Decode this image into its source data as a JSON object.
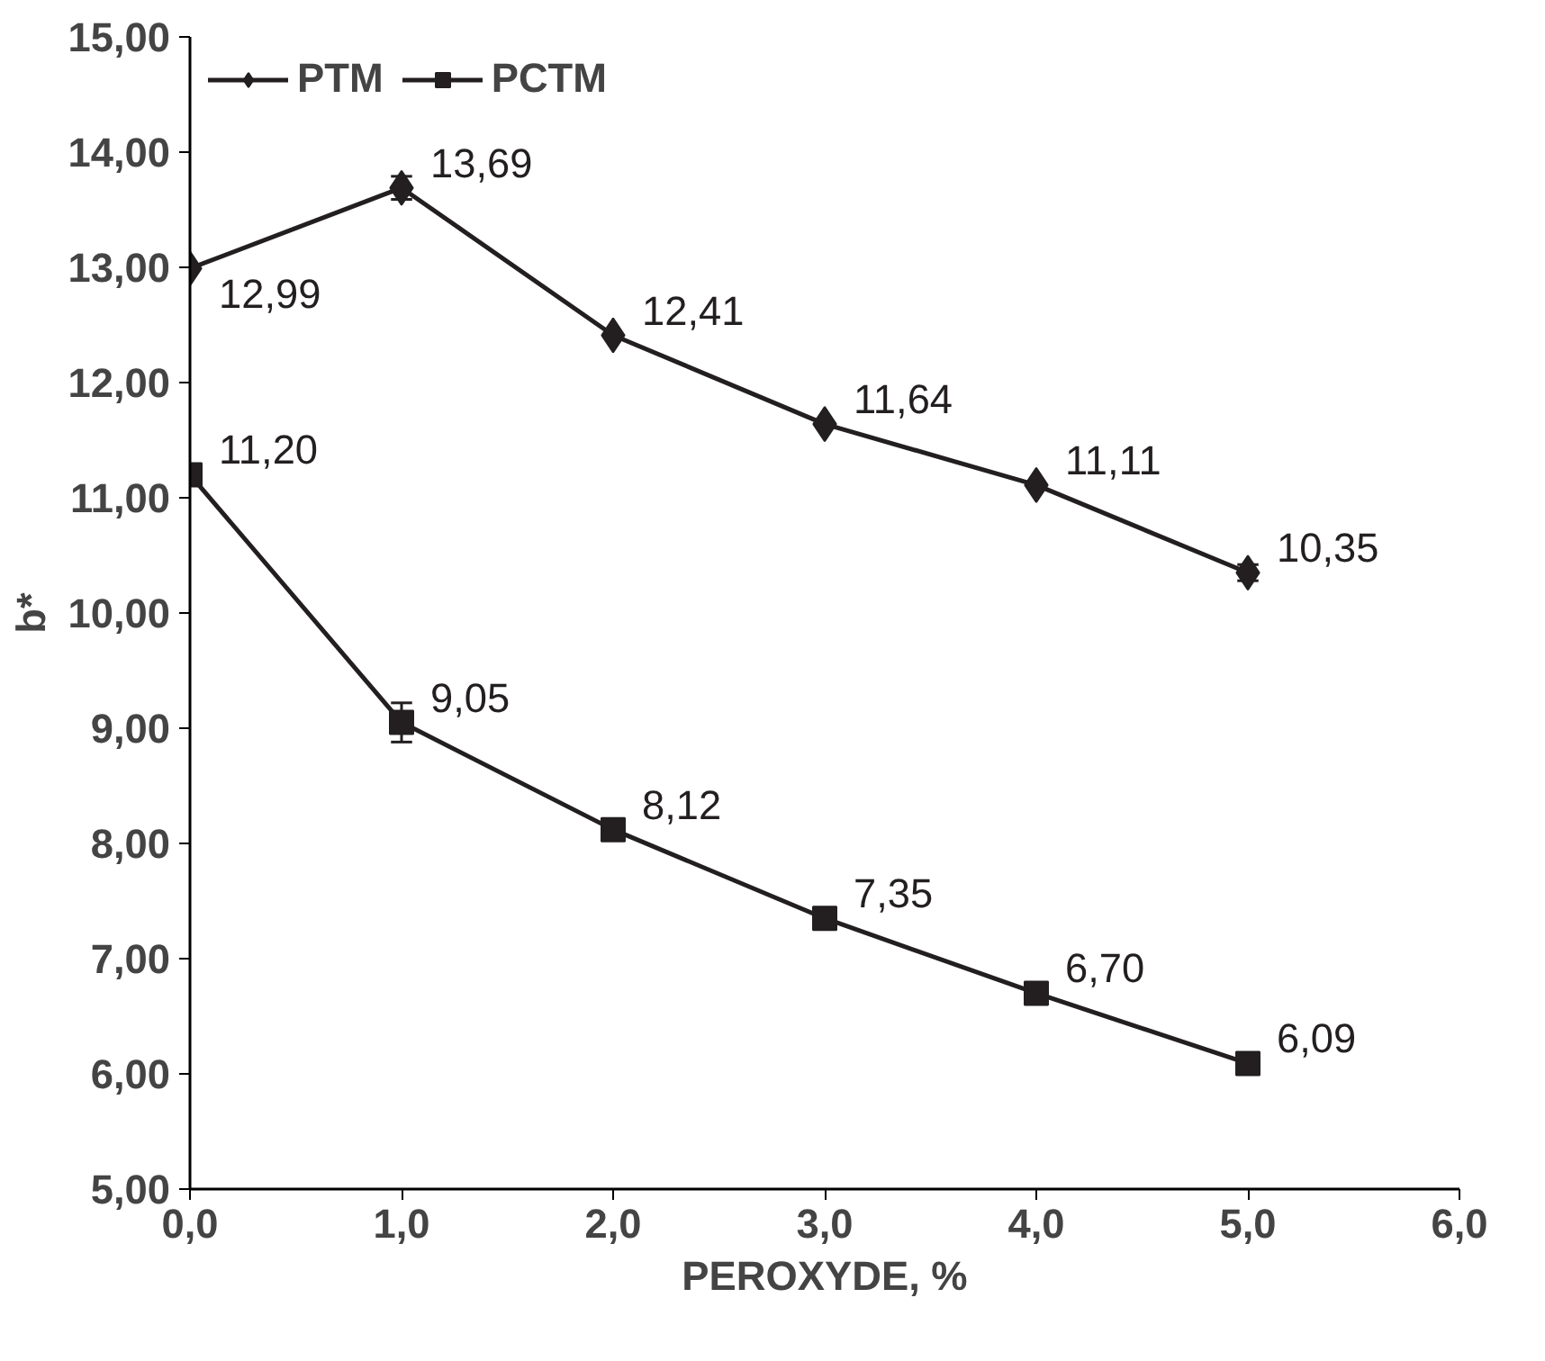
{
  "chart_data": {
    "type": "line",
    "xlabel": "PEROXYDE, %",
    "ylabel": "b*",
    "x": [
      0,
      1,
      2,
      3,
      4,
      5
    ],
    "series": [
      {
        "name": "PTM",
        "color": "#231f20",
        "marker": "diamond",
        "values": [
          12.99,
          13.69,
          12.41,
          11.64,
          11.11,
          10.35
        ],
        "errors": [
          null,
          0.1,
          null,
          null,
          null,
          0.07
        ],
        "value_labels": [
          "12,99",
          "13,69",
          "12,41",
          "11,64",
          "11,11",
          "10,35"
        ]
      },
      {
        "name": "PCTM",
        "color": "#231f20",
        "marker": "square",
        "values": [
          11.2,
          9.05,
          8.12,
          7.35,
          6.7,
          6.09
        ],
        "errors": [
          null,
          0.17,
          null,
          null,
          null,
          null
        ],
        "value_labels": [
          "11,20",
          "9,05",
          "8,12",
          "7,35",
          "6,70",
          "6,09"
        ]
      }
    ],
    "xlim": [
      0,
      6
    ],
    "ylim": [
      5,
      15
    ],
    "xticks": [
      {
        "value": 0,
        "label": "0,0"
      },
      {
        "value": 1,
        "label": "1,0"
      },
      {
        "value": 2,
        "label": "2,0"
      },
      {
        "value": 3,
        "label": "3,0"
      },
      {
        "value": 4,
        "label": "4,0"
      },
      {
        "value": 5,
        "label": "5,0"
      },
      {
        "value": 6,
        "label": "6,0"
      }
    ],
    "yticks": [
      {
        "value": 5,
        "label": "5,00"
      },
      {
        "value": 6,
        "label": "6,00"
      },
      {
        "value": 7,
        "label": "7,00"
      },
      {
        "value": 8,
        "label": "8,00"
      },
      {
        "value": 9,
        "label": "9,00"
      },
      {
        "value": 10,
        "label": "10,00"
      },
      {
        "value": 11,
        "label": "11,00"
      },
      {
        "value": 12,
        "label": "12,00"
      },
      {
        "value": 13,
        "label": "13,00"
      },
      {
        "value": 14,
        "label": "14,00"
      },
      {
        "value": 15,
        "label": "15,00"
      }
    ],
    "legend": "top left",
    "grid": false,
    "line_style": "solid"
  }
}
